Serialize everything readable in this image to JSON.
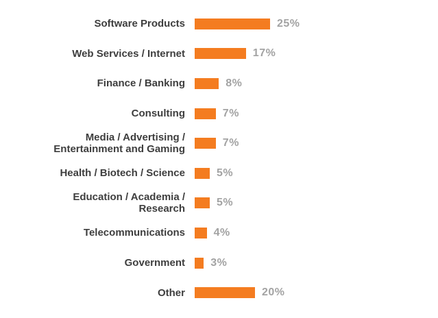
{
  "chart_data": {
    "type": "bar",
    "orientation": "horizontal",
    "title": "",
    "xlabel": "",
    "ylabel": "",
    "xlim": [
      0,
      25
    ],
    "grid": false,
    "axes_visible": false,
    "legend": null,
    "bar_color": "#F47C20",
    "label_color": "#3E3E3E",
    "value_color": "#A3A3A3",
    "categories": [
      "Software Products",
      "Web Services / Internet",
      "Finance / Banking",
      "Consulting",
      "Media / Advertising /\nEntertainment and Gaming",
      "Health / Biotech / Science",
      "Education / Academia /\nResearch",
      "Telecommunications",
      "Government",
      "Other"
    ],
    "values": [
      25,
      17,
      8,
      7,
      7,
      5,
      5,
      4,
      3,
      20
    ],
    "value_labels": [
      "25%",
      "17%",
      "8%",
      "7%",
      "7%",
      "5%",
      "5%",
      "4%",
      "3%",
      "20%"
    ]
  }
}
